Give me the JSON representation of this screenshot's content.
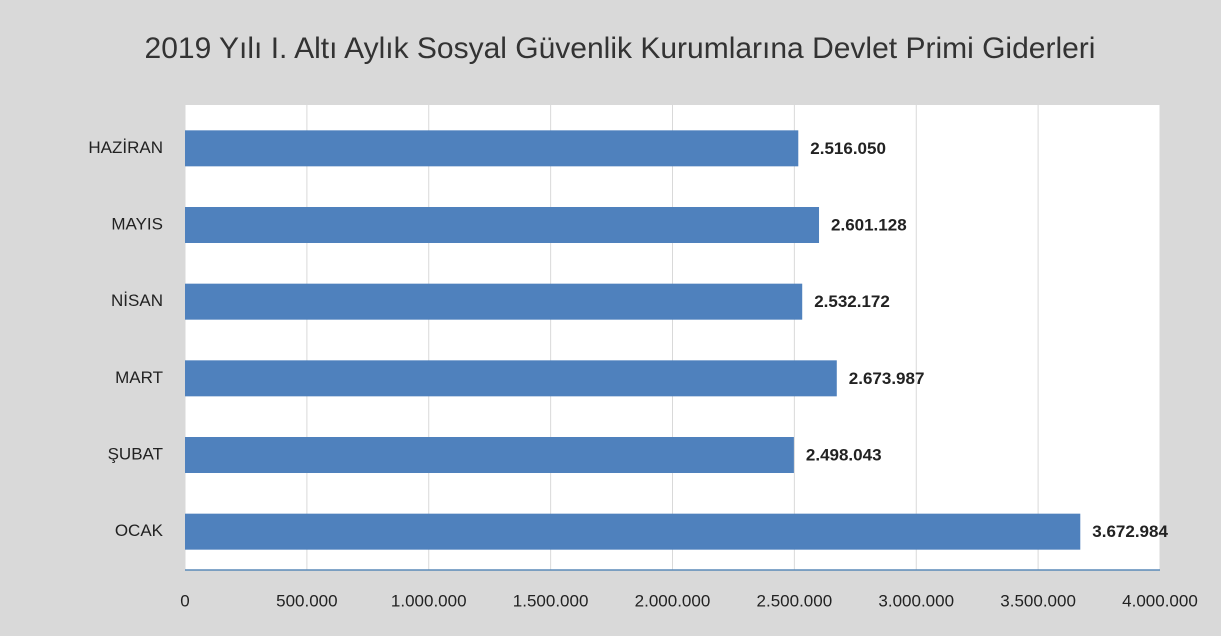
{
  "chart_data": {
    "type": "bar",
    "orientation": "horizontal",
    "title": "2019 Yılı I. Altı Aylık Sosyal Güvenlik Kurumlarına Devlet Primi Giderleri",
    "categories": [
      "HAZİRAN",
      "MAYIS",
      "NİSAN",
      "MART",
      "ŞUBAT",
      "OCAK"
    ],
    "values": [
      2516050,
      2601128,
      2532172,
      2673987,
      2498043,
      3672984
    ],
    "value_labels": [
      "2.516.050",
      "2.601.128",
      "2.532.172",
      "2.673.987",
      "2.498.043",
      "3.672.984"
    ],
    "color": "#4f81bd",
    "xlim": [
      0,
      4000000
    ],
    "xticks": [
      0,
      {
        "value": 500000,
        "label": "500.000"
      },
      {
        "value": 1000000,
        "label": "1.000.000"
      },
      {
        "value": 1500000,
        "label": "1.500.000"
      },
      {
        "value": 2000000,
        "label": "2.000.000"
      },
      {
        "value": 2500000,
        "label": "2.500.000"
      },
      {
        "value": 3000000,
        "label": "3.000.000"
      },
      {
        "value": 3500000,
        "label": "3.500.000"
      },
      {
        "value": 4000000,
        "label": "4.000.000"
      }
    ],
    "grid": true
  }
}
